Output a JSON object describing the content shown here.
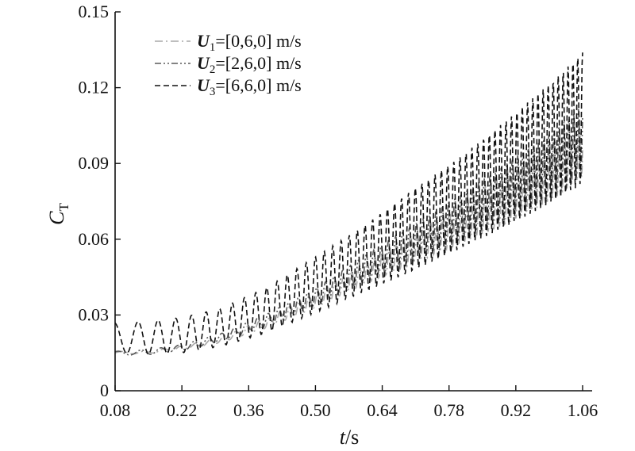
{
  "chart_data": {
    "type": "line",
    "title": "",
    "xlabel": {
      "var": "t",
      "unit": "/s"
    },
    "ylabel": {
      "var": "C",
      "sub": "T"
    },
    "xlim": [
      0.08,
      1.08
    ],
    "ylim": [
      0,
      0.15
    ],
    "xticks": [
      "0.08",
      "0.22",
      "0.36",
      "0.50",
      "0.64",
      "0.78",
      "0.92",
      "1.06"
    ],
    "yticks": [
      "0",
      "0.03",
      "0.06",
      "0.09",
      "0.12",
      "0.15"
    ],
    "grid": false,
    "legend_position": "top-left",
    "series": [
      {
        "name": "U1=[0,6,0] m/s",
        "label": {
          "sym": "U",
          "sub": "1",
          "rest": "=[0,6,0] m/s"
        },
        "color": "#a8a8a8",
        "dash": "dashdot",
        "x": [
          0.08,
          0.15,
          0.22,
          0.3,
          0.4,
          0.5,
          0.6,
          0.7,
          0.8,
          0.9,
          1.0,
          1.06
        ],
        "y": [
          0.015,
          0.0152,
          0.017,
          0.02,
          0.027,
          0.036,
          0.046,
          0.056,
          0.066,
          0.076,
          0.088,
          0.097
        ],
        "amp": [
          0.0005,
          0.0005,
          0.0007,
          0.001,
          0.002,
          0.003,
          0.004,
          0.006,
          0.008,
          0.01,
          0.012,
          0.012
        ]
      },
      {
        "name": "U2=[2,6,0] m/s",
        "label": {
          "sym": "U",
          "sub": "2",
          "rest": "=[2,6,0] m/s"
        },
        "color": "#5a5a5a",
        "dash": "dashdotdot",
        "x": [
          0.08,
          0.15,
          0.22,
          0.3,
          0.4,
          0.5,
          0.6,
          0.7,
          0.8,
          0.9,
          1.0,
          1.06
        ],
        "y": [
          0.0148,
          0.0153,
          0.017,
          0.021,
          0.028,
          0.037,
          0.048,
          0.058,
          0.068,
          0.079,
          0.09,
          0.099
        ],
        "amp": [
          0.0008,
          0.001,
          0.0012,
          0.0015,
          0.0025,
          0.0035,
          0.005,
          0.007,
          0.009,
          0.011,
          0.013,
          0.014
        ]
      },
      {
        "name": "U3=[6,6,0] m/s",
        "label": {
          "sym": "U",
          "sub": "3",
          "rest": "=[6,6,0] m/s"
        },
        "color": "#111111",
        "dash": "dashed",
        "x": [
          0.08,
          0.15,
          0.22,
          0.3,
          0.4,
          0.5,
          0.6,
          0.7,
          0.8,
          0.9,
          1.0,
          1.06
        ],
        "y": [
          0.021,
          0.021,
          0.022,
          0.025,
          0.032,
          0.042,
          0.052,
          0.063,
          0.074,
          0.086,
          0.099,
          0.108
        ],
        "amp": [
          0.006,
          0.0065,
          0.007,
          0.0075,
          0.009,
          0.011,
          0.013,
          0.016,
          0.018,
          0.021,
          0.024,
          0.026
        ]
      }
    ]
  }
}
